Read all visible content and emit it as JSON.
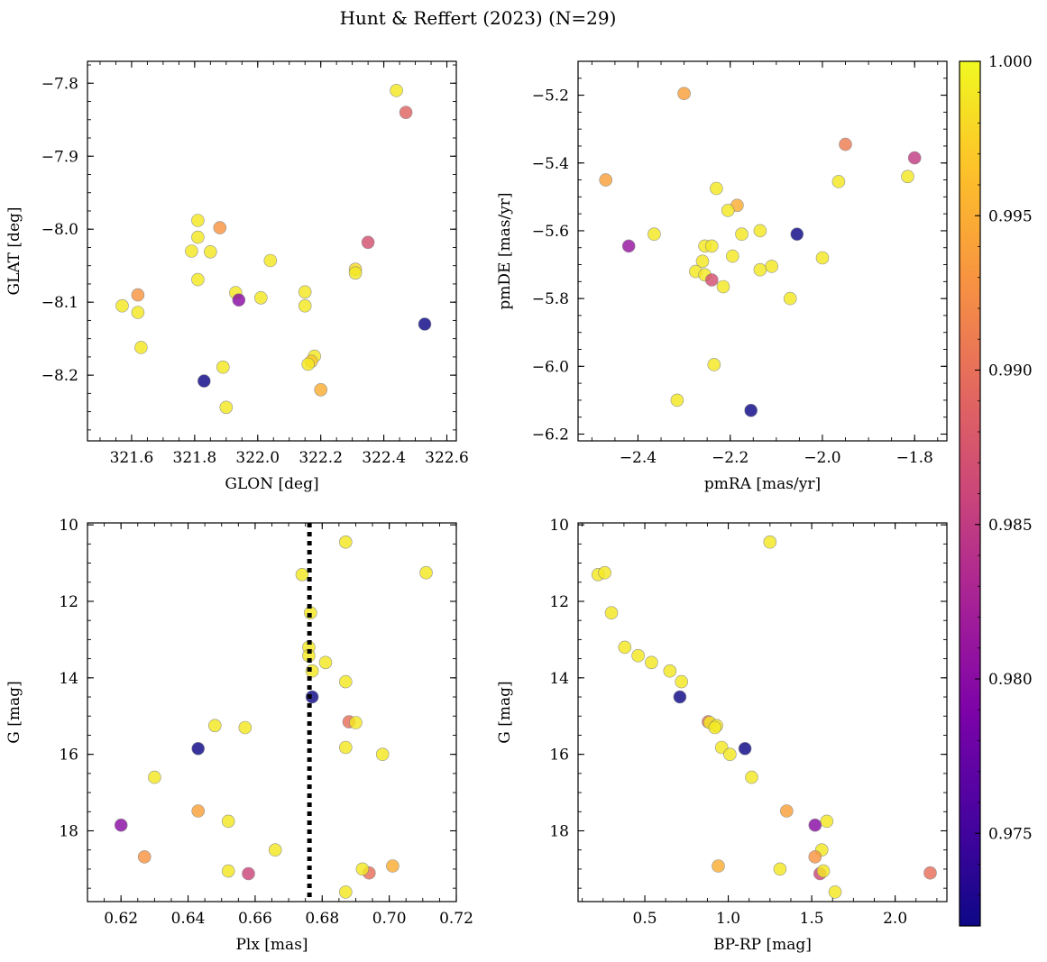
{
  "title": "Hunt & Reffert (2023) (N=29)",
  "colorbar": {
    "min": 0.972,
    "max": 1.0,
    "ticks": [
      0.975,
      0.98,
      0.985,
      0.99,
      0.995,
      1.0
    ],
    "tick_labels": [
      "0.975",
      "0.980",
      "0.985",
      "0.990",
      "0.995",
      "1.000"
    ],
    "colormap": "plasma"
  },
  "chart_data": [
    {
      "type": "scatter",
      "id": "sky",
      "xlabel": "GLON [deg]",
      "ylabel": "GLAT [deg]",
      "xlim": [
        321.46,
        322.63
      ],
      "ylim": [
        -8.29,
        -7.77
      ],
      "y_inverted": false,
      "xticks": [
        321.6,
        321.8,
        322.0,
        322.2,
        322.4,
        322.6
      ],
      "xtick_labels": [
        "321.6",
        "321.8",
        "322.0",
        "322.2",
        "322.4",
        "322.6"
      ],
      "yticks": [
        -8.2,
        -8.1,
        -8.0,
        -7.9,
        -7.8
      ],
      "ytick_labels": [
        "−8.2",
        "−8.1",
        "−8.0",
        "−7.9",
        "−7.8"
      ],
      "points": [
        [
          322.44,
          -7.81,
          0.999
        ],
        [
          322.47,
          -7.84,
          0.989
        ],
        [
          321.88,
          -7.998,
          0.993
        ],
        [
          321.81,
          -7.988,
          0.999
        ],
        [
          321.81,
          -8.011,
          0.999
        ],
        [
          321.79,
          -8.03,
          0.999
        ],
        [
          321.85,
          -8.031,
          0.999
        ],
        [
          322.04,
          -8.043,
          0.999
        ],
        [
          322.35,
          -8.018,
          0.987
        ],
        [
          322.31,
          -8.055,
          0.998
        ],
        [
          322.31,
          -8.06,
          0.999
        ],
        [
          321.81,
          -8.069,
          0.999
        ],
        [
          321.62,
          -8.09,
          0.993
        ],
        [
          321.93,
          -8.087,
          0.999
        ],
        [
          321.94,
          -8.097,
          0.98
        ],
        [
          322.01,
          -8.094,
          0.999
        ],
        [
          322.15,
          -8.086,
          0.999
        ],
        [
          321.57,
          -8.105,
          0.999
        ],
        [
          321.62,
          -8.114,
          0.999
        ],
        [
          322.15,
          -8.105,
          0.999
        ],
        [
          322.53,
          -8.13,
          0.972
        ],
        [
          321.63,
          -8.162,
          0.999
        ],
        [
          322.18,
          -8.174,
          0.999
        ],
        [
          322.17,
          -8.181,
          0.997
        ],
        [
          322.16,
          -8.185,
          0.999
        ],
        [
          321.89,
          -8.189,
          0.999
        ],
        [
          321.83,
          -8.208,
          0.972
        ],
        [
          322.2,
          -8.22,
          0.995
        ],
        [
          321.9,
          -8.244,
          0.999
        ]
      ]
    },
    {
      "type": "scatter",
      "id": "pm",
      "xlabel": "pmRA [mas/yr]",
      "ylabel": "pmDE [mas/yr]",
      "xlim": [
        -2.53,
        -1.73
      ],
      "ylim": [
        -6.22,
        -5.1
      ],
      "y_inverted": false,
      "xticks": [
        -2.4,
        -2.2,
        -2.0,
        -1.8
      ],
      "xtick_labels": [
        "−2.4",
        "−2.2",
        "−2.0",
        "−1.8"
      ],
      "yticks": [
        -6.2,
        -6.0,
        -5.8,
        -5.6,
        -5.4,
        -5.2
      ],
      "ytick_labels": [
        "−6.2",
        "−6.0",
        "−5.8",
        "−5.6",
        "−5.4",
        "−5.2"
      ],
      "points": [
        [
          -2.3,
          -5.195,
          0.994
        ],
        [
          -1.95,
          -5.345,
          0.991
        ],
        [
          -1.8,
          -5.385,
          0.985
        ],
        [
          -2.47,
          -5.45,
          0.994
        ],
        [
          -1.815,
          -5.44,
          0.999
        ],
        [
          -1.965,
          -5.455,
          0.999
        ],
        [
          -2.23,
          -5.475,
          0.999
        ],
        [
          -2.185,
          -5.525,
          0.995
        ],
        [
          -2.205,
          -5.54,
          0.999
        ],
        [
          -2.365,
          -5.61,
          0.999
        ],
        [
          -2.175,
          -5.61,
          0.999
        ],
        [
          -2.135,
          -5.6,
          0.999
        ],
        [
          -2.055,
          -5.61,
          0.972
        ],
        [
          -2.42,
          -5.645,
          0.981
        ],
        [
          -2.255,
          -5.645,
          0.999
        ],
        [
          -2.24,
          -5.645,
          0.999
        ],
        [
          -2.195,
          -5.675,
          0.999
        ],
        [
          -2.26,
          -5.69,
          0.999
        ],
        [
          -2.0,
          -5.68,
          0.999
        ],
        [
          -2.11,
          -5.705,
          0.999
        ],
        [
          -2.135,
          -5.715,
          0.999
        ],
        [
          -2.275,
          -5.72,
          0.999
        ],
        [
          -2.255,
          -5.73,
          0.999
        ],
        [
          -2.24,
          -5.745,
          0.987
        ],
        [
          -2.215,
          -5.765,
          0.999
        ],
        [
          -2.07,
          -5.8,
          0.999
        ],
        [
          -2.235,
          -5.995,
          0.999
        ],
        [
          -2.315,
          -6.1,
          0.999
        ],
        [
          -2.155,
          -6.13,
          0.972
        ]
      ]
    },
    {
      "type": "scatter",
      "id": "plx",
      "xlabel": "Plx [mas]",
      "ylabel": "G [mag]",
      "xlim": [
        0.61,
        0.72
      ],
      "ylim": [
        9.95,
        19.85
      ],
      "y_inverted": true,
      "xticks": [
        0.62,
        0.64,
        0.66,
        0.68,
        0.7,
        0.72
      ],
      "xtick_labels": [
        "0.62",
        "0.64",
        "0.66",
        "0.68",
        "0.70",
        "0.72"
      ],
      "yticks": [
        10,
        12,
        14,
        16,
        18
      ],
      "ytick_labels": [
        "10",
        "12",
        "14",
        "16",
        "18"
      ],
      "vline": 0.6762,
      "points": [
        [
          0.687,
          10.45,
          0.999
        ],
        [
          0.674,
          11.3,
          0.999
        ],
        [
          0.711,
          11.25,
          0.999
        ],
        [
          0.6765,
          12.3,
          0.999
        ],
        [
          0.676,
          13.2,
          0.999
        ],
        [
          0.676,
          13.42,
          0.999
        ],
        [
          0.681,
          13.6,
          0.999
        ],
        [
          0.677,
          13.82,
          0.999
        ],
        [
          0.677,
          14.5,
          0.972
        ],
        [
          0.687,
          14.1,
          0.999
        ],
        [
          0.688,
          15.15,
          0.99
        ],
        [
          0.69,
          15.17,
          0.999
        ],
        [
          0.648,
          15.25,
          0.999
        ],
        [
          0.657,
          15.3,
          0.999
        ],
        [
          0.643,
          15.85,
          0.972
        ],
        [
          0.687,
          15.82,
          0.999
        ],
        [
          0.698,
          16.0,
          0.999
        ],
        [
          0.63,
          16.6,
          0.999
        ],
        [
          0.643,
          17.48,
          0.994
        ],
        [
          0.652,
          17.75,
          0.999
        ],
        [
          0.62,
          17.85,
          0.98
        ],
        [
          0.627,
          18.68,
          0.993
        ],
        [
          0.666,
          18.5,
          0.999
        ],
        [
          0.652,
          19.05,
          0.999
        ],
        [
          0.658,
          19.12,
          0.986
        ],
        [
          0.694,
          19.1,
          0.99
        ],
        [
          0.692,
          19.0,
          0.999
        ],
        [
          0.701,
          18.92,
          0.995
        ],
        [
          0.687,
          19.6,
          0.999
        ]
      ]
    },
    {
      "type": "scatter",
      "id": "cmd",
      "xlabel": "BP-RP [mag]",
      "ylabel": "G [mag]",
      "xlim": [
        0.1,
        2.31
      ],
      "ylim": [
        9.95,
        19.85
      ],
      "y_inverted": true,
      "xticks": [
        0.5,
        1.0,
        1.5,
        2.0
      ],
      "xtick_labels": [
        "0.5",
        "1.0",
        "1.5",
        "2.0"
      ],
      "yticks": [
        10,
        12,
        14,
        16,
        18
      ],
      "ytick_labels": [
        "10",
        "12",
        "14",
        "16",
        "18"
      ],
      "points": [
        [
          1.25,
          10.45,
          0.999
        ],
        [
          0.22,
          11.3,
          0.999
        ],
        [
          0.26,
          11.25,
          0.999
        ],
        [
          0.3,
          12.3,
          0.999
        ],
        [
          0.38,
          13.2,
          0.999
        ],
        [
          0.46,
          13.42,
          0.999
        ],
        [
          0.54,
          13.6,
          0.999
        ],
        [
          0.65,
          13.82,
          0.999
        ],
        [
          0.72,
          14.1,
          0.999
        ],
        [
          0.71,
          14.5,
          0.972
        ],
        [
          0.88,
          15.15,
          0.99
        ],
        [
          0.89,
          15.17,
          0.999
        ],
        [
          0.93,
          15.25,
          0.999
        ],
        [
          0.92,
          15.3,
          0.999
        ],
        [
          0.96,
          15.82,
          0.999
        ],
        [
          1.1,
          15.85,
          0.972
        ],
        [
          1.01,
          16.0,
          0.999
        ],
        [
          1.14,
          16.6,
          0.999
        ],
        [
          1.35,
          17.48,
          0.994
        ],
        [
          1.59,
          17.75,
          0.999
        ],
        [
          1.52,
          17.85,
          0.98
        ],
        [
          1.56,
          18.5,
          0.999
        ],
        [
          1.52,
          18.68,
          0.993
        ],
        [
          0.94,
          18.92,
          0.995
        ],
        [
          1.31,
          19.0,
          0.999
        ],
        [
          1.55,
          19.12,
          0.986
        ],
        [
          1.57,
          19.05,
          0.999
        ],
        [
          2.21,
          19.1,
          0.99
        ],
        [
          1.64,
          19.6,
          0.999
        ]
      ]
    }
  ]
}
